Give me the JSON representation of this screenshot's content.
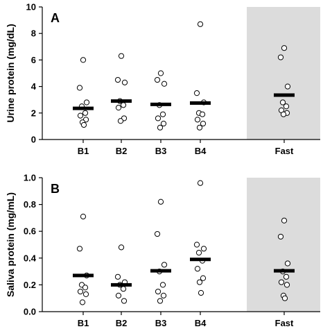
{
  "chart_data": [
    {
      "panel": "A",
      "type": "scatter",
      "ylabel": "Urine protein (mg/dL)",
      "ylim": [
        0,
        10
      ],
      "yticks": [
        0,
        2,
        4,
        6,
        8,
        10
      ],
      "categories": [
        "B1",
        "B2",
        "B3",
        "B4",
        "Fast"
      ],
      "shaded_category": "Fast",
      "shade_color": "#dcdcdc",
      "points": [
        [
          6.0,
          3.9,
          2.8,
          2.5,
          2.0,
          1.8,
          1.5,
          1.3,
          1.1
        ],
        [
          6.3,
          4.5,
          4.3,
          2.9,
          2.6,
          2.4,
          1.6,
          1.4
        ],
        [
          5.0,
          4.5,
          4.2,
          2.6,
          1.9,
          1.6,
          1.2,
          0.9
        ],
        [
          8.7,
          3.5,
          2.8,
          2.0,
          1.9,
          1.5,
          1.2,
          0.9
        ],
        [
          6.9,
          6.2,
          4.0,
          2.8,
          2.5,
          2.2,
          2.0,
          1.9
        ]
      ],
      "means": [
        2.35,
        2.9,
        2.65,
        2.75,
        3.35
      ]
    },
    {
      "panel": "B",
      "type": "scatter",
      "ylabel": "Saliva protein (mg/mL)",
      "ylim": [
        0,
        1.0
      ],
      "yticks": [
        0.0,
        0.2,
        0.4,
        0.6,
        0.8,
        1.0
      ],
      "categories": [
        "B1",
        "B2",
        "B3",
        "B4",
        "Fast"
      ],
      "shaded_category": "Fast",
      "shade_color": "#dcdcdc",
      "points": [
        [
          0.71,
          0.47,
          0.27,
          0.2,
          0.18,
          0.15,
          0.13,
          0.07
        ],
        [
          0.48,
          0.26,
          0.22,
          0.2,
          0.17,
          0.12,
          0.08
        ],
        [
          0.82,
          0.58,
          0.35,
          0.3,
          0.2,
          0.15,
          0.12,
          0.08
        ],
        [
          0.96,
          0.5,
          0.47,
          0.44,
          0.38,
          0.32,
          0.25,
          0.22,
          0.14
        ],
        [
          0.68,
          0.56,
          0.36,
          0.3,
          0.26,
          0.22,
          0.2,
          0.12,
          0.1
        ]
      ],
      "means": [
        0.27,
        0.2,
        0.305,
        0.39,
        0.305
      ]
    }
  ]
}
